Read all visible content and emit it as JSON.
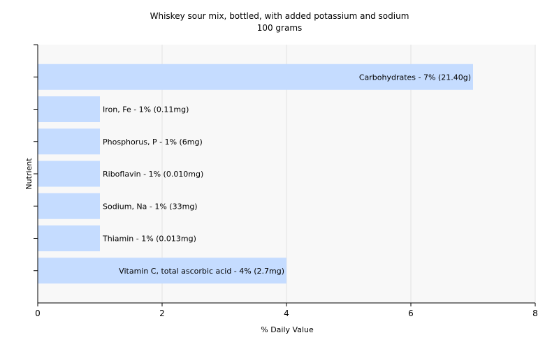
{
  "chart_data": {
    "type": "bar",
    "orientation": "horizontal",
    "title": "Whiskey sour mix, bottled, with added potassium and sodium",
    "subtitle": "100 grams",
    "xlabel": "% Daily Value",
    "ylabel": "Nutrient",
    "xlim": [
      0,
      8
    ],
    "xticks": [
      "0",
      "2",
      "4",
      "6",
      "8"
    ],
    "grid": true,
    "bar_color": "#c5dcff",
    "bars": [
      {
        "name": "Carbohydrates",
        "value": 7,
        "label": "Carbohydrates - 7% (21.40g)"
      },
      {
        "name": "Iron, Fe",
        "value": 1,
        "label": "Iron, Fe - 1% (0.11mg)"
      },
      {
        "name": "Phosphorus, P",
        "value": 1,
        "label": "Phosphorus, P - 1% (6mg)"
      },
      {
        "name": "Riboflavin",
        "value": 1,
        "label": "Riboflavin - 1% (0.010mg)"
      },
      {
        "name": "Sodium, Na",
        "value": 1,
        "label": "Sodium, Na - 1% (33mg)"
      },
      {
        "name": "Thiamin",
        "value": 1,
        "label": "Thiamin - 1% (0.013mg)"
      },
      {
        "name": "Vitamin C, total ascorbic acid",
        "value": 4,
        "label": "Vitamin C, total ascorbic acid - 4% (2.7mg)"
      }
    ]
  }
}
